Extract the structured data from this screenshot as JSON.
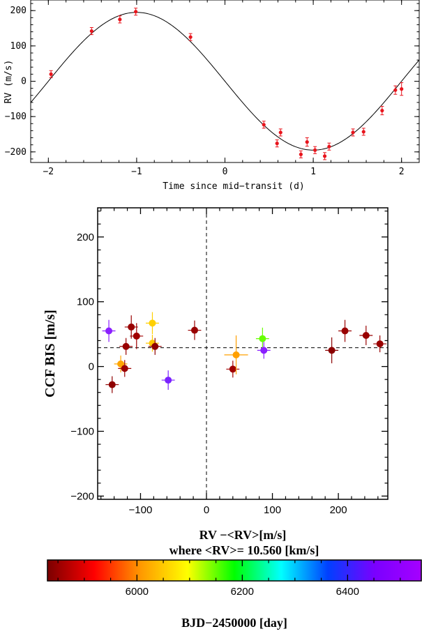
{
  "chart_data": [
    {
      "type": "scatter",
      "subtype": "rv-curve",
      "xlabel": "Time since mid−transit (d)",
      "ylabel": "RV (m/s)",
      "xlim": [
        -2.2,
        2.2
      ],
      "ylim": [
        -230,
        230
      ],
      "xticks": [
        -2,
        -1,
        0,
        1,
        2
      ],
      "yticks": [
        -200,
        -100,
        0,
        100,
        200
      ],
      "xtick_labels": [
        "−2",
        "−1",
        "0",
        "1",
        "2"
      ],
      "ytick_labels": [
        "−200",
        "−100",
        "0",
        "100",
        "200"
      ],
      "model": {
        "amplitude": 195,
        "period": 4.0,
        "phase_peak": -1.0
      },
      "points": [
        {
          "x": -1.97,
          "y": 20,
          "err": 10
        },
        {
          "x": -1.51,
          "y": 142,
          "err": 10
        },
        {
          "x": -1.19,
          "y": 175,
          "err": 10
        },
        {
          "x": -1.01,
          "y": 197,
          "err": 10
        },
        {
          "x": -0.39,
          "y": 125,
          "err": 10
        },
        {
          "x": 0.44,
          "y": -123,
          "err": 10
        },
        {
          "x": 0.59,
          "y": -176,
          "err": 10
        },
        {
          "x": 0.63,
          "y": -145,
          "err": 10
        },
        {
          "x": 0.86,
          "y": -207,
          "err": 10
        },
        {
          "x": 0.93,
          "y": -172,
          "err": 12
        },
        {
          "x": 1.02,
          "y": -195,
          "err": 10
        },
        {
          "x": 1.13,
          "y": -212,
          "err": 10
        },
        {
          "x": 1.18,
          "y": -185,
          "err": 10
        },
        {
          "x": 1.45,
          "y": -145,
          "err": 10
        },
        {
          "x": 1.57,
          "y": -143,
          "err": 10
        },
        {
          "x": 1.78,
          "y": -83,
          "err": 12
        },
        {
          "x": 1.93,
          "y": -25,
          "err": 12
        },
        {
          "x": 2.0,
          "y": -22,
          "err": 18
        }
      ],
      "point_color": "#e8141c"
    },
    {
      "type": "scatter",
      "subtype": "bisector-vs-rv",
      "xlabel": "RV −<RV>[m/s]",
      "xlabel2": "where <RV>= 10.560 [km/s]",
      "ylabel": "CCF BIS [m/s]",
      "xlim": [
        -165,
        275
      ],
      "ylim": [
        -205,
        245
      ],
      "xticks": [
        -100,
        0,
        100,
        200
      ],
      "yticks": [
        -200,
        -100,
        0,
        100,
        200
      ],
      "xtick_labels": [
        "−100",
        "0",
        "100",
        "200"
      ],
      "ytick_labels": [
        "−200",
        "−100",
        "0",
        "100",
        "200"
      ],
      "mean_bis": 29,
      "points": [
        {
          "x": -148,
          "y": 55,
          "xerr": 10,
          "yerr": 17,
          "color": "#8b1fff"
        },
        {
          "x": -143,
          "y": -28,
          "xerr": 10,
          "yerr": 13,
          "color": "#8e0000"
        },
        {
          "x": -130,
          "y": 4,
          "xerr": 10,
          "yerr": 13,
          "color": "#ffa500"
        },
        {
          "x": -124,
          "y": -3,
          "xerr": 10,
          "yerr": 13,
          "color": "#9b0000"
        },
        {
          "x": -122,
          "y": 31,
          "xerr": 10,
          "yerr": 13,
          "color": "#990000"
        },
        {
          "x": -114,
          "y": 61,
          "xerr": 10,
          "yerr": 18,
          "color": "#990000"
        },
        {
          "x": -106,
          "y": 47,
          "xerr": 10,
          "yerr": 20,
          "color": "#a00000"
        },
        {
          "x": -82,
          "y": 67,
          "xerr": 10,
          "yerr": 17,
          "color": "#ffd000"
        },
        {
          "x": -82,
          "y": 36,
          "xerr": 10,
          "yerr": 13,
          "color": "#ffc800"
        },
        {
          "x": -78,
          "y": 31,
          "xerr": 10,
          "yerr": 13,
          "color": "#8e0000"
        },
        {
          "x": -58,
          "y": -21,
          "xerr": 10,
          "yerr": 15,
          "color": "#7a22ff"
        },
        {
          "x": -18,
          "y": 56,
          "xerr": 10,
          "yerr": 15,
          "color": "#990000"
        },
        {
          "x": 40,
          "y": -4,
          "xerr": 10,
          "yerr": 13,
          "color": "#a00000"
        },
        {
          "x": 45,
          "y": 18,
          "xerr": 18,
          "yerr": 30,
          "color": "#ffa000"
        },
        {
          "x": 85,
          "y": 43,
          "xerr": 10,
          "yerr": 17,
          "color": "#66ff00"
        },
        {
          "x": 87,
          "y": 25,
          "xerr": 10,
          "yerr": 13,
          "color": "#8a1fff"
        },
        {
          "x": 190,
          "y": 25,
          "xerr": 10,
          "yerr": 20,
          "color": "#8b0000"
        },
        {
          "x": 210,
          "y": 55,
          "xerr": 10,
          "yerr": 17,
          "color": "#990000"
        },
        {
          "x": 242,
          "y": 48,
          "xerr": 10,
          "yerr": 15,
          "color": "#990000"
        },
        {
          "x": 263,
          "y": 35,
          "xerr": 10,
          "yerr": 13,
          "color": "#990000"
        }
      ]
    },
    {
      "type": "colorbar",
      "label": "BJD−2450000 [day]",
      "range": [
        5830,
        6540
      ],
      "ticks": [
        6000,
        6200,
        6400
      ],
      "tick_labels": [
        "6000",
        "6200",
        "6400"
      ],
      "stops": [
        "#7a0000",
        "#ff0000",
        "#ff9900",
        "#ffff00",
        "#00ff00",
        "#00ffff",
        "#0040ff",
        "#7a00ff",
        "#a500ff"
      ]
    }
  ]
}
